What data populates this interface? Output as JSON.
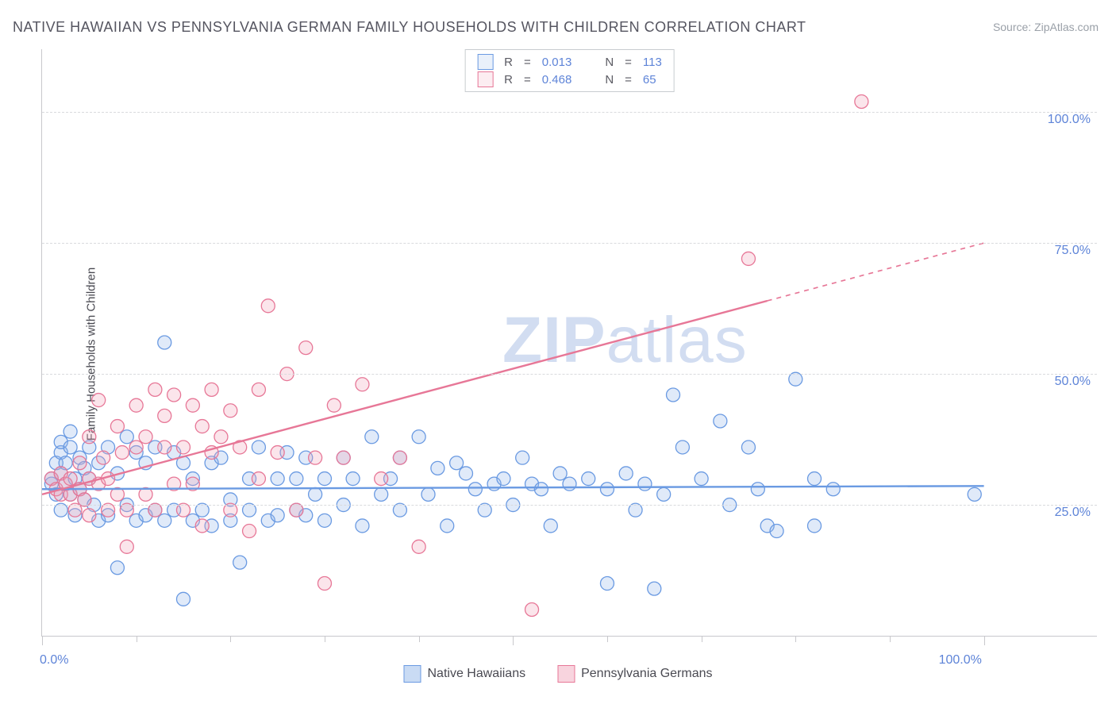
{
  "title": "NATIVE HAWAIIAN VS PENNSYLVANIA GERMAN FAMILY HOUSEHOLDS WITH CHILDREN CORRELATION CHART",
  "source_label": "Source: ZipAtlas.com",
  "y_axis_label": "Family Households with Children",
  "watermark_bold": "ZIP",
  "watermark_rest": "atlas",
  "chart": {
    "type": "scatter",
    "background_color": "#ffffff",
    "grid_color": "#d9dadd",
    "axis_color": "#c8c8cc",
    "tick_label_color": "#5e84d8",
    "tick_fontsize": 16,
    "title_fontsize": 18,
    "xlim": [
      0,
      112
    ],
    "ylim": [
      0,
      112
    ],
    "yticks": [
      {
        "v": 25,
        "label": "25.0%"
      },
      {
        "v": 50,
        "label": "50.0%"
      },
      {
        "v": 75,
        "label": "75.0%"
      },
      {
        "v": 100,
        "label": "100.0%"
      }
    ],
    "xticks_major": [
      0,
      50,
      100
    ],
    "xticks_minor": [
      10,
      20,
      30,
      40,
      60,
      70,
      80,
      90
    ],
    "xtick_labels": [
      {
        "v": 0,
        "label": "0.0%"
      },
      {
        "v": 100,
        "label": "100.0%"
      }
    ],
    "marker_radius": 8.5,
    "marker_stroke_width": 1.3,
    "marker_fill_opacity": 0.28,
    "trendline_width": 2.4,
    "series": [
      {
        "name": "Native Hawaiians",
        "color_stroke": "#6a9ae2",
        "color_fill": "#8fb3e8",
        "R": "0.013",
        "N": "113",
        "trend": {
          "y_at_x0": 28.0,
          "y_at_x100": 28.6,
          "solid_until_x": 100
        },
        "points": [
          [
            1,
            29
          ],
          [
            1,
            30
          ],
          [
            1.5,
            33
          ],
          [
            1.5,
            27
          ],
          [
            2,
            35
          ],
          [
            2,
            31
          ],
          [
            2,
            37
          ],
          [
            2,
            24
          ],
          [
            2.5,
            29
          ],
          [
            2.5,
            33
          ],
          [
            3,
            36
          ],
          [
            3,
            27
          ],
          [
            3,
            39
          ],
          [
            3.5,
            30
          ],
          [
            3.5,
            23
          ],
          [
            4,
            34
          ],
          [
            4,
            28
          ],
          [
            4.5,
            32
          ],
          [
            4.5,
            26
          ],
          [
            5,
            36
          ],
          [
            5,
            30
          ],
          [
            5.5,
            25
          ],
          [
            6,
            33
          ],
          [
            6,
            22
          ],
          [
            7,
            36
          ],
          [
            7,
            23
          ],
          [
            8,
            13
          ],
          [
            8,
            31
          ],
          [
            9,
            38
          ],
          [
            9,
            25
          ],
          [
            10,
            35
          ],
          [
            10,
            22
          ],
          [
            11,
            33
          ],
          [
            11,
            23
          ],
          [
            12,
            36
          ],
          [
            12,
            24
          ],
          [
            13,
            56
          ],
          [
            13,
            22
          ],
          [
            14,
            35
          ],
          [
            14,
            24
          ],
          [
            15,
            7
          ],
          [
            15,
            33
          ],
          [
            16,
            22
          ],
          [
            16,
            30
          ],
          [
            17,
            24
          ],
          [
            18,
            33
          ],
          [
            18,
            21
          ],
          [
            19,
            34
          ],
          [
            20,
            26
          ],
          [
            20,
            22
          ],
          [
            21,
            14
          ],
          [
            22,
            30
          ],
          [
            22,
            24
          ],
          [
            23,
            36
          ],
          [
            24,
            22
          ],
          [
            25,
            30
          ],
          [
            25,
            23
          ],
          [
            26,
            35
          ],
          [
            27,
            24
          ],
          [
            27,
            30
          ],
          [
            28,
            34
          ],
          [
            28,
            23
          ],
          [
            29,
            27
          ],
          [
            30,
            22
          ],
          [
            30,
            30
          ],
          [
            32,
            34
          ],
          [
            32,
            25
          ],
          [
            33,
            30
          ],
          [
            34,
            21
          ],
          [
            35,
            38
          ],
          [
            36,
            27
          ],
          [
            37,
            30
          ],
          [
            38,
            24
          ],
          [
            38,
            34
          ],
          [
            40,
            38
          ],
          [
            41,
            27
          ],
          [
            42,
            32
          ],
          [
            43,
            21
          ],
          [
            44,
            33
          ],
          [
            45,
            31
          ],
          [
            46,
            28
          ],
          [
            47,
            24
          ],
          [
            48,
            29
          ],
          [
            49,
            30
          ],
          [
            50,
            25
          ],
          [
            51,
            34
          ],
          [
            52,
            29
          ],
          [
            53,
            28
          ],
          [
            54,
            21
          ],
          [
            55,
            31
          ],
          [
            56,
            29
          ],
          [
            58,
            30
          ],
          [
            60,
            28
          ],
          [
            60,
            10
          ],
          [
            62,
            31
          ],
          [
            63,
            24
          ],
          [
            64,
            29
          ],
          [
            65,
            9
          ],
          [
            66,
            27
          ],
          [
            67,
            46
          ],
          [
            68,
            36
          ],
          [
            70,
            30
          ],
          [
            72,
            41
          ],
          [
            73,
            25
          ],
          [
            75,
            36
          ],
          [
            76,
            28
          ],
          [
            77,
            21
          ],
          [
            78,
            20
          ],
          [
            80,
            49
          ],
          [
            82,
            30
          ],
          [
            84,
            28
          ],
          [
            99,
            27
          ],
          [
            82,
            21
          ]
        ]
      },
      {
        "name": "Pennsylvania Germans",
        "color_stroke": "#e77797",
        "color_fill": "#f2a3b8",
        "R": "0.468",
        "N": "65",
        "trend": {
          "y_at_x0": 27.0,
          "y_at_x100": 75.0,
          "solid_until_x": 77
        },
        "points": [
          [
            1,
            30
          ],
          [
            1.5,
            28
          ],
          [
            2,
            27
          ],
          [
            2,
            31
          ],
          [
            2.5,
            29
          ],
          [
            3,
            27
          ],
          [
            3,
            30
          ],
          [
            3.5,
            24
          ],
          [
            4,
            28
          ],
          [
            4,
            33
          ],
          [
            4.5,
            26
          ],
          [
            5,
            38
          ],
          [
            5,
            30
          ],
          [
            5,
            23
          ],
          [
            6,
            45
          ],
          [
            6,
            29
          ],
          [
            6.5,
            34
          ],
          [
            7,
            24
          ],
          [
            7,
            30
          ],
          [
            8,
            40
          ],
          [
            8,
            27
          ],
          [
            8.5,
            35
          ],
          [
            9,
            24
          ],
          [
            9,
            17
          ],
          [
            10,
            36
          ],
          [
            10,
            44
          ],
          [
            11,
            27
          ],
          [
            11,
            38
          ],
          [
            12,
            47
          ],
          [
            12,
            24
          ],
          [
            13,
            36
          ],
          [
            13,
            42
          ],
          [
            14,
            29
          ],
          [
            14,
            46
          ],
          [
            15,
            24
          ],
          [
            15,
            36
          ],
          [
            16,
            44
          ],
          [
            16,
            29
          ],
          [
            17,
            40
          ],
          [
            17,
            21
          ],
          [
            18,
            35
          ],
          [
            18,
            47
          ],
          [
            19,
            38
          ],
          [
            20,
            24
          ],
          [
            20,
            43
          ],
          [
            21,
            36
          ],
          [
            22,
            20
          ],
          [
            23,
            47
          ],
          [
            23,
            30
          ],
          [
            24,
            63
          ],
          [
            25,
            35
          ],
          [
            26,
            50
          ],
          [
            27,
            24
          ],
          [
            28,
            55
          ],
          [
            29,
            34
          ],
          [
            30,
            10
          ],
          [
            31,
            44
          ],
          [
            32,
            34
          ],
          [
            34,
            48
          ],
          [
            36,
            30
          ],
          [
            38,
            34
          ],
          [
            40,
            17
          ],
          [
            52,
            5
          ],
          [
            75,
            72
          ],
          [
            87,
            102
          ]
        ]
      }
    ]
  },
  "legend_top": {
    "r_label": "R",
    "n_label": "N",
    "eq": "="
  },
  "legend_bottom": [
    {
      "label": "Native Hawaiians",
      "stroke": "#6a9ae2",
      "fill": "#c9dbf4"
    },
    {
      "label": "Pennsylvania Germans",
      "stroke": "#e77797",
      "fill": "#f8d4de"
    }
  ]
}
